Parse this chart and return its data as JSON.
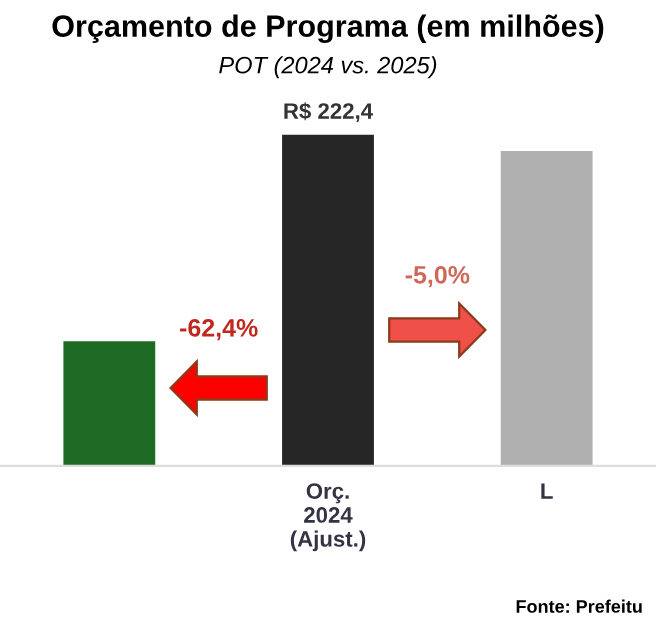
{
  "chart_data": {
    "type": "bar",
    "title": "Orçamento de Programa (em milhões)",
    "subtitle": "POT (2024 vs. 2025)",
    "categories": [
      null,
      "Orç.\n2024\n(Ajust.)",
      "L"
    ],
    "values": [
      83.6,
      222.4,
      211.3
    ],
    "colors": [
      "#1e6b23",
      "#262626",
      "#b0b0b0"
    ],
    "value_labels": [
      null,
      "R$ 222,4",
      null
    ],
    "annotations": [
      "-62,4%",
      "-5,0%",
      "Fonte: Prefeitu"
    ]
  }
}
